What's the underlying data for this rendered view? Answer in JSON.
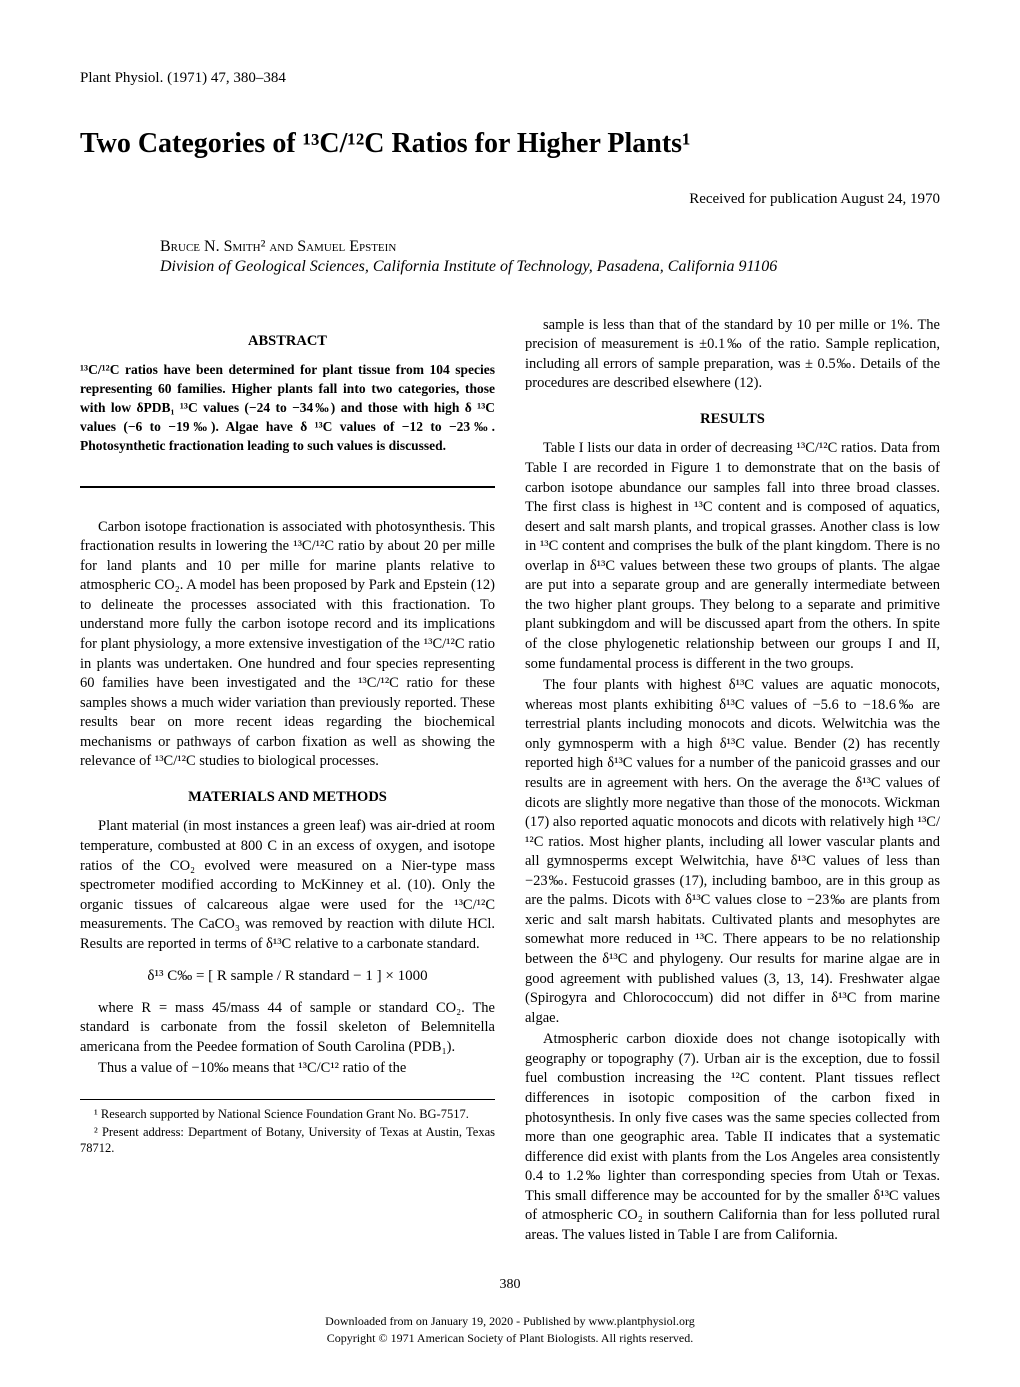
{
  "journal_header": "Plant Physiol. (1971) 47, 380–384",
  "title": "Two Categories of ¹³C/¹²C Ratios for Higher Plants¹",
  "received": "Received for publication August 24, 1970",
  "authors": "Bruce N. Smith² and Samuel Epstein",
  "affiliation": "Division of Geological Sciences, California Institute of Technology, Pasadena, California 91106",
  "abstract_heading": "ABSTRACT",
  "abstract_text": "¹³C/¹²C ratios have been determined for plant tissue from 104 species representing 60 families. Higher plants fall into two categories, those with low δPDB₁ ¹³C values (−24 to −34‰) and those with high δ ¹³C values (−6 to −19‰). Algae have δ ¹³C values of −12 to −23‰. Photosynthetic fractionation leading to such values is discussed.",
  "intro_p1": "Carbon isotope fractionation is associated with photosynthesis. This fractionation results in lowering the ¹³C/¹²C ratio by about 20 per mille for land plants and 10 per mille for marine plants relative to atmospheric CO₂. A model has been proposed by Park and Epstein (12) to delineate the processes associated with this fractionation. To understand more fully the carbon isotope record and its implications for plant physiology, a more extensive investigation of the ¹³C/¹²C ratio in plants was undertaken. One hundred and four species representing 60 families have been investigated and the ¹³C/¹²C ratio for these samples shows a much wider variation than previously reported. These results bear on more recent ideas regarding the biochemical mechanisms or pathways of carbon fixation as well as showing the relevance of ¹³C/¹²C studies to biological processes.",
  "methods_heading": "MATERIALS AND METHODS",
  "methods_p1": "Plant material (in most instances a green leaf) was air-dried at room temperature, combusted at 800 C in an excess of oxygen, and isotope ratios of the CO₂ evolved were measured on a Nier-type mass spectrometer modified according to McKinney et al. (10). Only the organic tissues of calcareous algae were used for the ¹³C/¹²C measurements. The CaCO₃ was removed by reaction with dilute HCl. Results are reported in terms of δ¹³C relative to a carbonate standard.",
  "formula": "δ¹³ C‰ = [ R sample / R standard − 1 ] × 1000",
  "methods_p2": "where R = mass 45/mass 44 of sample or standard CO₂. The standard is carbonate from the fossil skeleton of Belemnitella americana from the Peedee formation of South Carolina (PDB₁).",
  "methods_p3": "Thus a value of −10‰ means that ¹³C/C¹² ratio of the",
  "col2_p1": "sample is less than that of the standard by 10 per mille or 1%. The precision of measurement is ±0.1‰ of the ratio. Sample replication, including all errors of sample preparation, was ± 0.5‰. Details of the procedures are described elsewhere (12).",
  "results_heading": "RESULTS",
  "results_p1": "Table I lists our data in order of decreasing ¹³C/¹²C ratios. Data from Table I are recorded in Figure 1 to demonstrate that on the basis of carbon isotope abundance our samples fall into three broad classes. The first class is highest in ¹³C content and is composed of aquatics, desert and salt marsh plants, and tropical grasses. Another class is low in ¹³C content and comprises the bulk of the plant kingdom. There is no overlap in δ¹³C values between these two groups of plants. The algae are put into a separate group and are generally intermediate between the two higher plant groups. They belong to a separate and primitive plant subkingdom and will be discussed apart from the others. In spite of the close phylogenetic relationship between our groups I and II, some fundamental process is different in the two groups.",
  "results_p2": "The four plants with highest δ¹³C values are aquatic monocots, whereas most plants exhibiting δ¹³C values of −5.6 to −18.6‰ are terrestrial plants including monocots and dicots. Welwitchia was the only gymnosperm with a high δ¹³C value. Bender (2) has recently reported high δ¹³C values for a number of the panicoid grasses and our results are in agreement with hers. On the average the δ¹³C values of dicots are slightly more negative than those of the monocots. Wickman (17) also reported aquatic monocots and dicots with relatively high ¹³C/¹²C ratios. Most higher plants, including all lower vascular plants and all gymnosperms except Welwitchia, have δ¹³C values of less than −23‰. Festucoid grasses (17), including bamboo, are in this group as are the palms. Dicots with δ¹³C values close to −23‰ are plants from xeric and salt marsh habitats. Cultivated plants and mesophytes are somewhat more reduced in ¹³C. There appears to be no relationship between the δ¹³C and phylogeny. Our results for marine algae are in good agreement with published values (3, 13, 14). Freshwater algae (Spirogyra and Chlorococcum) did not differ in δ¹³C from marine algae.",
  "results_p3": "Atmospheric carbon dioxide does not change isotopically with geography or topography (7). Urban air is the exception, due to fossil fuel combustion increasing the ¹²C content. Plant tissues reflect differences in isotopic composition of the carbon fixed in photosynthesis. In only five cases was the same species collected from more than one geographic area. Table II indicates that a systematic difference did exist with plants from the Los Angeles area consistently 0.4 to 1.2‰ lighter than corresponding species from Utah or Texas. This small difference may be accounted for by the smaller δ¹³C values of atmospheric CO₂ in southern California than for less polluted rural areas. The values listed in Table I are from California.",
  "footnote1": "¹ Research supported by National Science Foundation Grant No. BG-7517.",
  "footnote2": "² Present address: Department of Botany, University of Texas at Austin, Texas 78712.",
  "page_number": "380",
  "copyright_line1": "Downloaded from on January 19, 2020 - Published by www.plantphysiol.org",
  "copyright_line2": "Copyright © 1971 American Society of Plant Biologists. All rights reserved."
}
